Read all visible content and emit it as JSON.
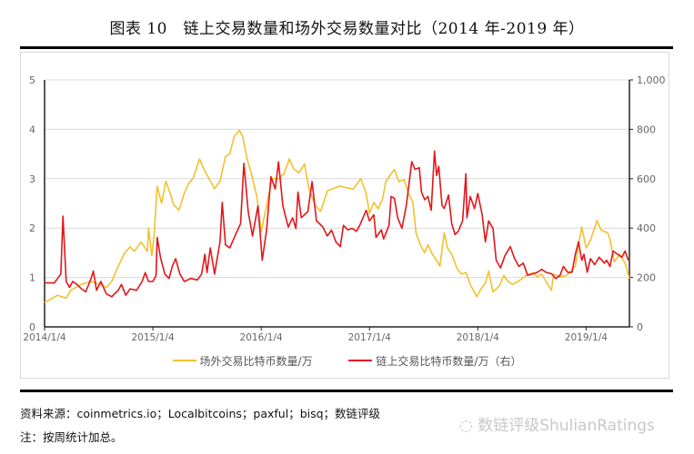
{
  "title": "图表 10　链上交易数量和场外交易数量对比（2014 年-2019 年）",
  "source": "资料来源：coinmetrics.io；Localbitcoins；paxful；bisq；数链评级",
  "note": "注：按周统计加总。",
  "watermark": "数链评级ShulianRatings",
  "chart_data": {
    "type": "line",
    "title": "链上交易数量和场外交易数量对比（2014 年-2019 年）",
    "x_ticks": [
      "2014/1/4",
      "2015/1/4",
      "2016/1/4",
      "2017/1/4",
      "2018/1/4",
      "2019/1/4"
    ],
    "x_tick_values": [
      2014,
      2015,
      2016,
      2017,
      2018,
      2019
    ],
    "xlim": [
      2014,
      2019.4
    ],
    "y_left": {
      "lim": [
        0,
        5
      ],
      "ticks": [
        "0",
        "1",
        "2",
        "3",
        "4",
        "5"
      ]
    },
    "y_right": {
      "lim": [
        0,
        1000
      ],
      "ticks": [
        "0",
        "200",
        "400",
        "600",
        "800",
        "1,000"
      ]
    },
    "grid": true,
    "legend_position": "bottom",
    "colors": {
      "otc": "#f2c12e",
      "onchain": "#e3161b"
    },
    "series": [
      {
        "name": "场外交易比特币数量/万",
        "axis": "left",
        "points": [
          [
            2014.0,
            0.49
          ],
          [
            2014.12,
            0.64
          ],
          [
            2014.2,
            0.58
          ],
          [
            2014.24,
            0.74
          ],
          [
            2014.34,
            0.86
          ],
          [
            2014.43,
            0.92
          ],
          [
            2014.51,
            0.86
          ],
          [
            2014.57,
            0.8
          ],
          [
            2014.62,
            0.92
          ],
          [
            2014.68,
            1.23
          ],
          [
            2014.74,
            1.5
          ],
          [
            2014.79,
            1.62
          ],
          [
            2014.83,
            1.53
          ],
          [
            2014.89,
            1.72
          ],
          [
            2014.95,
            1.53
          ],
          [
            2014.96,
            2.0
          ],
          [
            2014.99,
            1.44
          ],
          [
            2015.01,
            1.84
          ],
          [
            2015.04,
            2.85
          ],
          [
            2015.08,
            2.5
          ],
          [
            2015.12,
            2.95
          ],
          [
            2015.16,
            2.7
          ],
          [
            2015.19,
            2.48
          ],
          [
            2015.24,
            2.36
          ],
          [
            2015.29,
            2.7
          ],
          [
            2015.33,
            2.9
          ],
          [
            2015.37,
            3.0
          ],
          [
            2015.43,
            3.4
          ],
          [
            2015.47,
            3.2
          ],
          [
            2015.53,
            2.95
          ],
          [
            2015.57,
            2.8
          ],
          [
            2015.62,
            2.95
          ],
          [
            2015.67,
            3.45
          ],
          [
            2015.71,
            3.5
          ],
          [
            2015.75,
            3.85
          ],
          [
            2015.8,
            3.98
          ],
          [
            2015.83,
            3.85
          ],
          [
            2015.87,
            3.4
          ],
          [
            2015.91,
            3.1
          ],
          [
            2015.96,
            2.64
          ],
          [
            2016.0,
            1.93
          ],
          [
            2016.05,
            2.45
          ],
          [
            2016.1,
            3.0
          ],
          [
            2016.16,
            3.0
          ],
          [
            2016.21,
            3.1
          ],
          [
            2016.26,
            3.4
          ],
          [
            2016.3,
            3.2
          ],
          [
            2016.35,
            3.12
          ],
          [
            2016.4,
            3.3
          ],
          [
            2016.44,
            2.8
          ],
          [
            2016.5,
            2.45
          ],
          [
            2016.55,
            2.34
          ],
          [
            2016.61,
            2.75
          ],
          [
            2016.66,
            2.8
          ],
          [
            2016.73,
            2.85
          ],
          [
            2016.78,
            2.82
          ],
          [
            2016.85,
            2.79
          ],
          [
            2016.87,
            2.85
          ],
          [
            2016.92,
            3.0
          ],
          [
            2016.97,
            2.7
          ],
          [
            2017.0,
            2.3
          ],
          [
            2017.04,
            2.52
          ],
          [
            2017.08,
            2.39
          ],
          [
            2017.12,
            2.58
          ],
          [
            2017.15,
            2.94
          ],
          [
            2017.19,
            3.07
          ],
          [
            2017.23,
            3.19
          ],
          [
            2017.27,
            2.94
          ],
          [
            2017.32,
            2.98
          ],
          [
            2017.36,
            2.7
          ],
          [
            2017.4,
            2.52
          ],
          [
            2017.43,
            1.9
          ],
          [
            2017.47,
            1.66
          ],
          [
            2017.51,
            1.5
          ],
          [
            2017.54,
            1.66
          ],
          [
            2017.58,
            1.47
          ],
          [
            2017.62,
            1.35
          ],
          [
            2017.65,
            1.23
          ],
          [
            2017.69,
            1.9
          ],
          [
            2017.72,
            1.6
          ],
          [
            2017.76,
            1.47
          ],
          [
            2017.81,
            1.17
          ],
          [
            2017.85,
            1.07
          ],
          [
            2017.89,
            1.1
          ],
          [
            2017.93,
            0.86
          ],
          [
            2017.99,
            0.61
          ],
          [
            2018.03,
            0.77
          ],
          [
            2018.07,
            0.89
          ],
          [
            2018.1,
            1.13
          ],
          [
            2018.14,
            0.71
          ],
          [
            2018.2,
            0.83
          ],
          [
            2018.24,
            1.04
          ],
          [
            2018.28,
            0.92
          ],
          [
            2018.32,
            0.86
          ],
          [
            2018.37,
            0.92
          ],
          [
            2018.41,
            0.98
          ],
          [
            2018.45,
            1.04
          ],
          [
            2018.51,
            1.1
          ],
          [
            2018.55,
            1.01
          ],
          [
            2018.59,
            1.07
          ],
          [
            2018.63,
            0.92
          ],
          [
            2018.68,
            0.74
          ],
          [
            2018.7,
            1.07
          ],
          [
            2018.76,
            1.01
          ],
          [
            2018.82,
            1.04
          ],
          [
            2018.86,
            1.13
          ],
          [
            2018.9,
            1.23
          ],
          [
            2018.93,
            1.66
          ],
          [
            2018.96,
            2.02
          ],
          [
            2019.0,
            1.6
          ],
          [
            2019.04,
            1.75
          ],
          [
            2019.1,
            2.15
          ],
          [
            2019.14,
            1.96
          ],
          [
            2019.2,
            1.9
          ],
          [
            2019.22,
            1.78
          ],
          [
            2019.26,
            1.32
          ],
          [
            2019.31,
            1.47
          ],
          [
            2019.36,
            1.29
          ],
          [
            2019.4,
            0.98
          ]
        ]
      },
      {
        "name": "链上交易比特币数量/万（右）",
        "axis": "right",
        "points": [
          [
            2014.0,
            178
          ],
          [
            2014.09,
            178
          ],
          [
            2014.12,
            196
          ],
          [
            2014.15,
            214
          ],
          [
            2014.17,
            448
          ],
          [
            2014.2,
            184
          ],
          [
            2014.23,
            160
          ],
          [
            2014.26,
            184
          ],
          [
            2014.3,
            172
          ],
          [
            2014.34,
            154
          ],
          [
            2014.38,
            142
          ],
          [
            2014.43,
            196
          ],
          [
            2014.45,
            226
          ],
          [
            2014.48,
            148
          ],
          [
            2014.52,
            184
          ],
          [
            2014.57,
            134
          ],
          [
            2014.62,
            122
          ],
          [
            2014.68,
            148
          ],
          [
            2014.71,
            172
          ],
          [
            2014.75,
            128
          ],
          [
            2014.79,
            154
          ],
          [
            2014.85,
            148
          ],
          [
            2014.9,
            184
          ],
          [
            2014.93,
            220
          ],
          [
            2014.96,
            184
          ],
          [
            2015.0,
            184
          ],
          [
            2015.03,
            208
          ],
          [
            2015.04,
            362
          ],
          [
            2015.07,
            282
          ],
          [
            2015.11,
            214
          ],
          [
            2015.15,
            196
          ],
          [
            2015.18,
            246
          ],
          [
            2015.21,
            276
          ],
          [
            2015.25,
            214
          ],
          [
            2015.29,
            184
          ],
          [
            2015.35,
            196
          ],
          [
            2015.41,
            190
          ],
          [
            2015.45,
            214
          ],
          [
            2015.48,
            294
          ],
          [
            2015.5,
            220
          ],
          [
            2015.53,
            320
          ],
          [
            2015.57,
            214
          ],
          [
            2015.62,
            344
          ],
          [
            2015.64,
            504
          ],
          [
            2015.67,
            332
          ],
          [
            2015.71,
            320
          ],
          [
            2015.77,
            380
          ],
          [
            2015.81,
            418
          ],
          [
            2015.84,
            662
          ],
          [
            2015.88,
            466
          ],
          [
            2015.92,
            368
          ],
          [
            2015.97,
            490
          ],
          [
            2016.01,
            270
          ],
          [
            2016.05,
            392
          ],
          [
            2016.09,
            608
          ],
          [
            2016.13,
            558
          ],
          [
            2016.16,
            668
          ],
          [
            2016.2,
            490
          ],
          [
            2016.25,
            404
          ],
          [
            2016.29,
            442
          ],
          [
            2016.32,
            398
          ],
          [
            2016.34,
            546
          ],
          [
            2016.37,
            442
          ],
          [
            2016.43,
            466
          ],
          [
            2016.47,
            588
          ],
          [
            2016.51,
            430
          ],
          [
            2016.57,
            404
          ],
          [
            2016.61,
            368
          ],
          [
            2016.65,
            392
          ],
          [
            2016.69,
            344
          ],
          [
            2016.73,
            325
          ],
          [
            2016.76,
            411
          ],
          [
            2016.8,
            393
          ],
          [
            2016.84,
            399
          ],
          [
            2016.88,
            387
          ],
          [
            2016.91,
            411
          ],
          [
            2016.97,
            472
          ],
          [
            2017.0,
            429
          ],
          [
            2017.04,
            454
          ],
          [
            2017.06,
            362
          ],
          [
            2017.11,
            393
          ],
          [
            2017.13,
            356
          ],
          [
            2017.18,
            411
          ],
          [
            2017.2,
            528
          ],
          [
            2017.23,
            521
          ],
          [
            2017.26,
            442
          ],
          [
            2017.3,
            399
          ],
          [
            2017.34,
            491
          ],
          [
            2017.39,
            669
          ],
          [
            2017.42,
            638
          ],
          [
            2017.46,
            644
          ],
          [
            2017.48,
            546
          ],
          [
            2017.51,
            515
          ],
          [
            2017.54,
            528
          ],
          [
            2017.57,
            472
          ],
          [
            2017.6,
            712
          ],
          [
            2017.62,
            613
          ],
          [
            2017.64,
            650
          ],
          [
            2017.67,
            491
          ],
          [
            2017.69,
            479
          ],
          [
            2017.73,
            534
          ],
          [
            2017.76,
            417
          ],
          [
            2017.79,
            374
          ],
          [
            2017.82,
            387
          ],
          [
            2017.86,
            429
          ],
          [
            2017.89,
            620
          ],
          [
            2017.9,
            442
          ],
          [
            2017.93,
            528
          ],
          [
            2017.97,
            479
          ],
          [
            2018.0,
            540
          ],
          [
            2018.04,
            454
          ],
          [
            2018.07,
            344
          ],
          [
            2018.1,
            429
          ],
          [
            2018.14,
            399
          ],
          [
            2018.17,
            270
          ],
          [
            2018.21,
            239
          ],
          [
            2018.25,
            288
          ],
          [
            2018.3,
            325
          ],
          [
            2018.34,
            276
          ],
          [
            2018.38,
            245
          ],
          [
            2018.42,
            258
          ],
          [
            2018.46,
            209
          ],
          [
            2018.51,
            215
          ],
          [
            2018.55,
            221
          ],
          [
            2018.59,
            233
          ],
          [
            2018.63,
            221
          ],
          [
            2018.68,
            215
          ],
          [
            2018.72,
            196
          ],
          [
            2018.76,
            209
          ],
          [
            2018.79,
            245
          ],
          [
            2018.83,
            221
          ],
          [
            2018.87,
            221
          ],
          [
            2018.9,
            294
          ],
          [
            2018.93,
            344
          ],
          [
            2018.96,
            270
          ],
          [
            2018.98,
            294
          ],
          [
            2019.01,
            221
          ],
          [
            2019.04,
            276
          ],
          [
            2019.08,
            252
          ],
          [
            2019.12,
            282
          ],
          [
            2019.17,
            258
          ],
          [
            2019.19,
            270
          ],
          [
            2019.22,
            245
          ],
          [
            2019.25,
            307
          ],
          [
            2019.29,
            294
          ],
          [
            2019.33,
            282
          ],
          [
            2019.36,
            307
          ],
          [
            2019.39,
            270
          ]
        ]
      }
    ]
  }
}
